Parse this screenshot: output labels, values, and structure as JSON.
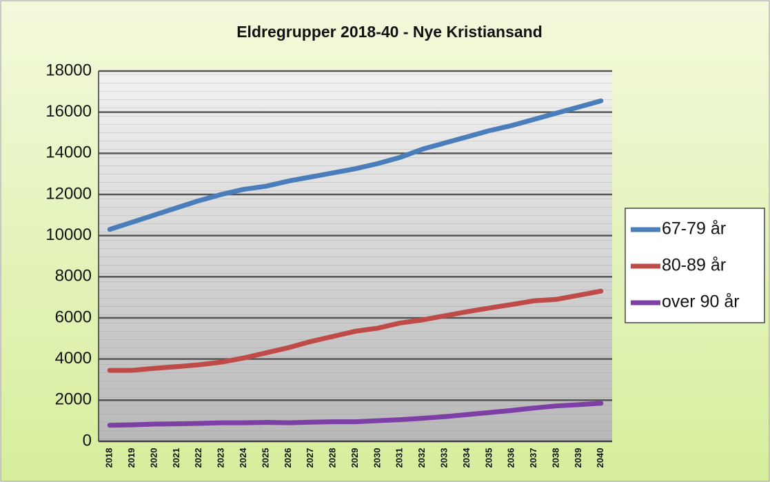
{
  "chart_data": {
    "type": "line",
    "title": "Eldregrupper 2018-40 - Nye Kristiansand",
    "categories": [
      "2018",
      "2019",
      "2020",
      "2021",
      "2022",
      "2023",
      "2024",
      "2025",
      "2026",
      "2027",
      "2028",
      "2029",
      "2030",
      "2031",
      "2032",
      "2033",
      "2034",
      "2035",
      "2036",
      "2037",
      "2038",
      "2039",
      "2040"
    ],
    "series": [
      {
        "name": "67-79 år",
        "color": "#4a7ebb",
        "values": [
          10300,
          10650,
          11000,
          11350,
          11700,
          12000,
          12250,
          12400,
          12650,
          12850,
          13050,
          13250,
          13500,
          13800,
          14200,
          14500,
          14800,
          15100,
          15350,
          15650,
          15950,
          16250,
          16550
        ]
      },
      {
        "name": "80-89 år",
        "color": "#be4b48",
        "values": [
          3450,
          3450,
          3550,
          3630,
          3720,
          3850,
          4050,
          4300,
          4550,
          4850,
          5100,
          5350,
          5500,
          5750,
          5900,
          6100,
          6300,
          6480,
          6650,
          6830,
          6900,
          7100,
          7300
        ]
      },
      {
        "name": "over 90 år",
        "color": "#7d3fa6",
        "values": [
          780,
          800,
          840,
          850,
          870,
          900,
          900,
          920,
          900,
          930,
          950,
          950,
          1000,
          1050,
          1120,
          1200,
          1300,
          1400,
          1500,
          1620,
          1720,
          1780,
          1850
        ]
      }
    ],
    "ylim": [
      0,
      18000
    ],
    "yticks": [
      0,
      2000,
      4000,
      6000,
      8000,
      10000,
      12000,
      14000,
      16000,
      18000
    ],
    "grid": true,
    "legend": "right"
  }
}
